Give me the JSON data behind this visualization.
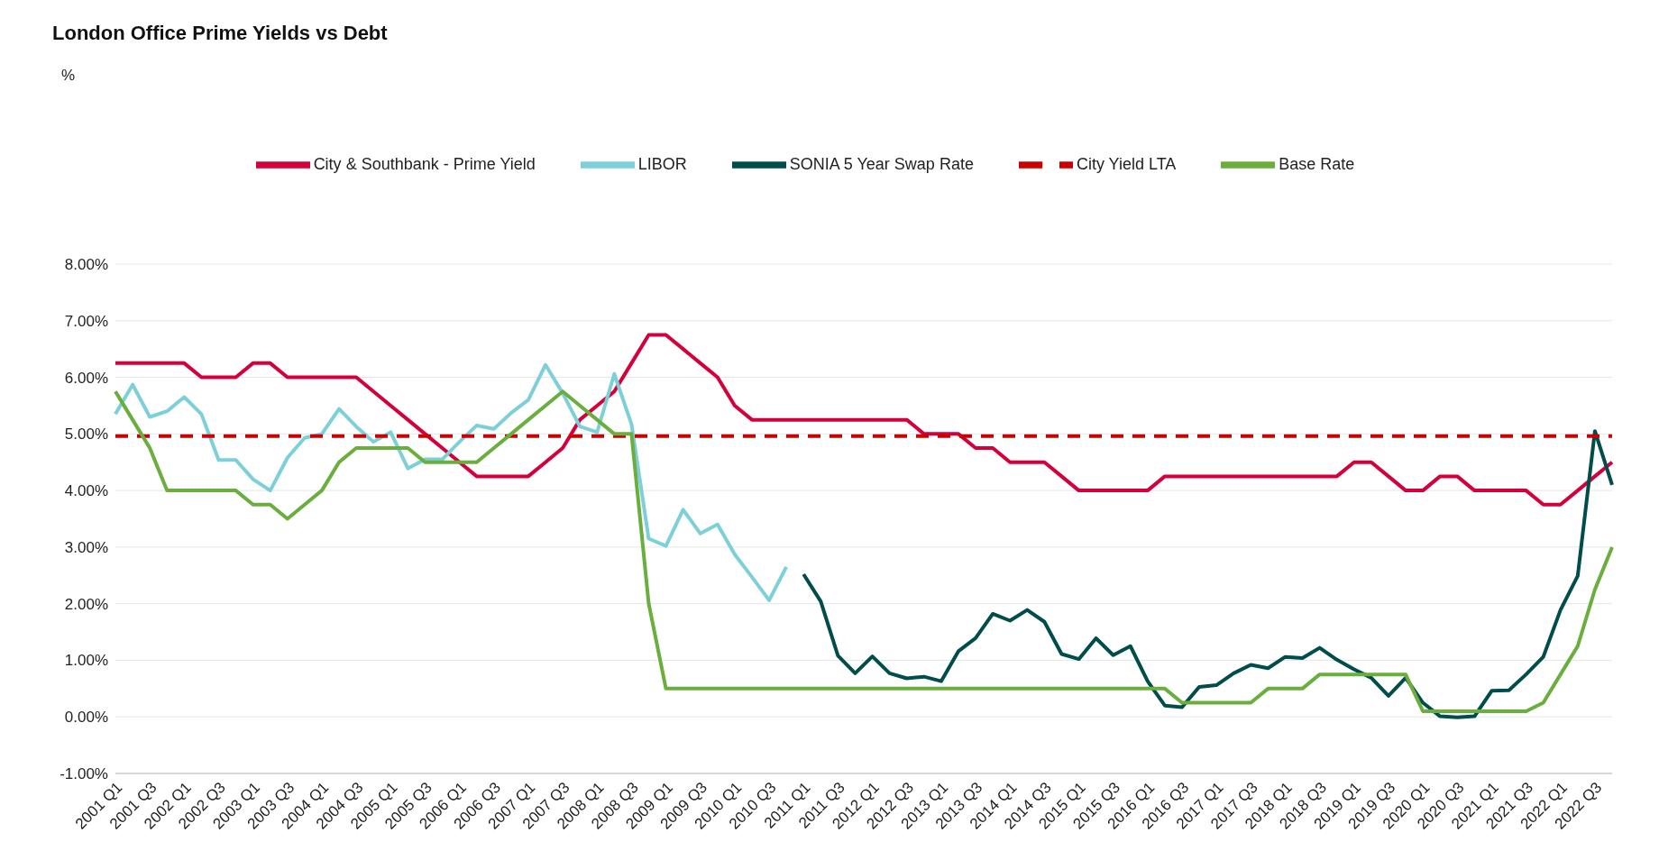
{
  "chart_data": {
    "type": "line",
    "title": "London Office Prime Yields vs Debt",
    "annotations": [
      "%"
    ],
    "categories": [
      "2001 Q1",
      null,
      "2001 Q3",
      null,
      "2002 Q1",
      null,
      "2002 Q3",
      null,
      "2003 Q1",
      null,
      "2003 Q3",
      null,
      "2004 Q1",
      null,
      "2004 Q3",
      null,
      "2005 Q1",
      null,
      "2005 Q3",
      null,
      "2006 Q1",
      null,
      "2006 Q3",
      null,
      "2007 Q1",
      null,
      "2007 Q3",
      null,
      "2008 Q1",
      null,
      "2008 Q3",
      null,
      "2009 Q1",
      null,
      "2009 Q3",
      null,
      "2010 Q1",
      null,
      "2010 Q3",
      null,
      "2011 Q1",
      null,
      "2011 Q3",
      null,
      "2012 Q1",
      null,
      "2012 Q3",
      null,
      "2013 Q1",
      null,
      "2013 Q3",
      null,
      "2014 Q1",
      null,
      "2014 Q3",
      null,
      "2015 Q1",
      null,
      "2015 Q3",
      null,
      "2016 Q1",
      null,
      "2016 Q3",
      null,
      "2017 Q1",
      null,
      "2017 Q3",
      null,
      "2018 Q1",
      null,
      "2018 Q3",
      null,
      "2019 Q1",
      null,
      "2019 Q3",
      null,
      "2020 Q1",
      null,
      "2020 Q3",
      null,
      "2021 Q1",
      null,
      "2021 Q3",
      null,
      "2022 Q1",
      null,
      "2022 Q3",
      null
    ],
    "series": [
      {
        "name": "City & Southbank - Prime Yield",
        "color": "#d4003c",
        "values": [
          6.25,
          6.25,
          6.25,
          6.25,
          6.25,
          6,
          6,
          6,
          6.25,
          6.25,
          6,
          6,
          6,
          6,
          6,
          5.75,
          5.5,
          5.25,
          5,
          4.75,
          4.5,
          4.25,
          4.25,
          4.25,
          4.25,
          4.5,
          4.75,
          5.25,
          5.5,
          5.75,
          6.25,
          6.75,
          6.75,
          6.5,
          6.25,
          6,
          5.5,
          5.25,
          5.25,
          5.25,
          5.25,
          5.25,
          5.25,
          5.25,
          5.25,
          5.25,
          5.25,
          5,
          5,
          5,
          4.75,
          4.75,
          4.5,
          4.5,
          4.5,
          4.25,
          4,
          4,
          4,
          4,
          4,
          4.25,
          4.25,
          4.25,
          4.25,
          4.25,
          4.25,
          4.25,
          4.25,
          4.25,
          4.25,
          4.25,
          4.5,
          4.5,
          4.25,
          4,
          4,
          4.25,
          4.25,
          4,
          4,
          4,
          4,
          3.75,
          3.75,
          4,
          4.25,
          4.5
        ]
      },
      {
        "name": "LIBOR",
        "color": "#7dd0d8",
        "values": [
          5.35,
          5.87,
          5.3,
          5.4,
          5.65,
          5.35,
          4.54,
          4.54,
          4.2,
          4.0,
          4.58,
          4.93,
          5.0,
          5.44,
          5.13,
          4.86,
          5.03,
          4.39,
          4.55,
          4.55,
          4.86,
          5.15,
          5.09,
          5.37,
          5.6,
          6.22,
          5.72,
          5.13,
          5.03,
          6.06,
          5.17,
          3.15,
          3.02,
          3.66,
          3.24,
          3.4,
          2.87,
          2.47,
          2.06,
          2.65,
          null,
          null,
          null,
          null,
          null,
          null,
          null,
          null,
          null,
          null,
          null,
          null,
          null,
          null,
          null,
          null,
          null,
          null,
          null,
          null,
          null,
          null,
          null,
          null,
          null,
          null,
          null,
          null,
          null,
          null,
          null,
          null,
          null,
          null,
          null,
          null,
          null,
          null,
          null,
          null,
          null,
          null,
          null,
          null,
          null,
          null,
          null,
          null
        ]
      },
      {
        "name": "SONIA 5 Year Swap Rate",
        "color": "#004d4b",
        "values": [
          null,
          null,
          null,
          null,
          null,
          null,
          null,
          null,
          null,
          null,
          null,
          null,
          null,
          null,
          null,
          null,
          null,
          null,
          null,
          null,
          null,
          null,
          null,
          null,
          null,
          null,
          null,
          null,
          null,
          null,
          null,
          null,
          null,
          null,
          null,
          null,
          null,
          null,
          null,
          null,
          2.52,
          2.04,
          1.08,
          0.77,
          1.07,
          0.77,
          0.68,
          0.71,
          0.63,
          1.16,
          1.39,
          1.82,
          1.7,
          1.89,
          1.68,
          1.11,
          1.02,
          1.39,
          1.09,
          1.25,
          0.63,
          0.2,
          0.17,
          0.53,
          0.56,
          0.77,
          0.92,
          0.86,
          1.06,
          1.04,
          1.22,
          1.01,
          0.84,
          0.69,
          0.37,
          0.69,
          0.25,
          0.01,
          -0.01,
          0.01,
          0.46,
          0.47,
          0.75,
          1.06,
          1.89,
          2.49,
          5.05,
          4.1
        ]
      },
      {
        "name": "City Yield LTA",
        "color": "#cc0000",
        "line_style": "dashed",
        "values": [
          4.96,
          4.96,
          4.96,
          4.96,
          4.96,
          4.96,
          4.96,
          4.96,
          4.96,
          4.96,
          4.96,
          4.96,
          4.96,
          4.96,
          4.96,
          4.96,
          4.96,
          4.96,
          4.96,
          4.96,
          4.96,
          4.96,
          4.96,
          4.96,
          4.96,
          4.96,
          4.96,
          4.96,
          4.96,
          4.96,
          4.96,
          4.96,
          4.96,
          4.96,
          4.96,
          4.96,
          4.96,
          4.96,
          4.96,
          4.96,
          4.96,
          4.96,
          4.96,
          4.96,
          4.96,
          4.96,
          4.96,
          4.96,
          4.96,
          4.96,
          4.96,
          4.96,
          4.96,
          4.96,
          4.96,
          4.96,
          4.96,
          4.96,
          4.96,
          4.96,
          4.96,
          4.96,
          4.96,
          4.96,
          4.96,
          4.96,
          4.96,
          4.96,
          4.96,
          4.96,
          4.96,
          4.96,
          4.96,
          4.96,
          4.96,
          4.96,
          4.96,
          4.96,
          4.96,
          4.96,
          4.96,
          4.96,
          4.96,
          4.96,
          4.96,
          4.96,
          4.96,
          4.96
        ]
      },
      {
        "name": "Base Rate",
        "color": "#6aae3e",
        "values": [
          5.75,
          5.25,
          4.75,
          4,
          4,
          4,
          4,
          4,
          3.75,
          3.75,
          3.5,
          3.75,
          4,
          4.5,
          4.75,
          4.75,
          4.75,
          4.75,
          4.5,
          4.5,
          4.5,
          4.5,
          4.75,
          5,
          5.25,
          5.5,
          5.75,
          5.5,
          5.25,
          5,
          5,
          2,
          0.5,
          0.5,
          0.5,
          0.5,
          0.5,
          0.5,
          0.5,
          0.5,
          0.5,
          0.5,
          0.5,
          0.5,
          0.5,
          0.5,
          0.5,
          0.5,
          0.5,
          0.5,
          0.5,
          0.5,
          0.5,
          0.5,
          0.5,
          0.5,
          0.5,
          0.5,
          0.5,
          0.5,
          0.5,
          0.5,
          0.25,
          0.25,
          0.25,
          0.25,
          0.25,
          0.5,
          0.5,
          0.5,
          0.75,
          0.75,
          0.75,
          0.75,
          0.75,
          0.75,
          0.1,
          0.1,
          0.1,
          0.1,
          0.1,
          0.1,
          0.1,
          0.25,
          0.75,
          1.25,
          2.25,
          3
        ]
      }
    ],
    "ylim": [
      -1,
      8
    ],
    "yticks": [
      {
        "value": -1,
        "label": "-1.00%"
      },
      {
        "value": 0,
        "label": "0.00%"
      },
      {
        "value": 1,
        "label": "1.00%"
      },
      {
        "value": 2,
        "label": "2.00%"
      },
      {
        "value": 3,
        "label": "3.00%"
      },
      {
        "value": 4,
        "label": "4.00%"
      },
      {
        "value": 5,
        "label": "5.00%"
      },
      {
        "value": 6,
        "label": "6.00%"
      },
      {
        "value": 7,
        "label": "7.00%"
      },
      {
        "value": 8,
        "label": "8.00%"
      }
    ],
    "grid": "y",
    "legend": "top",
    "marker": "none",
    "line_style": "solid"
  }
}
